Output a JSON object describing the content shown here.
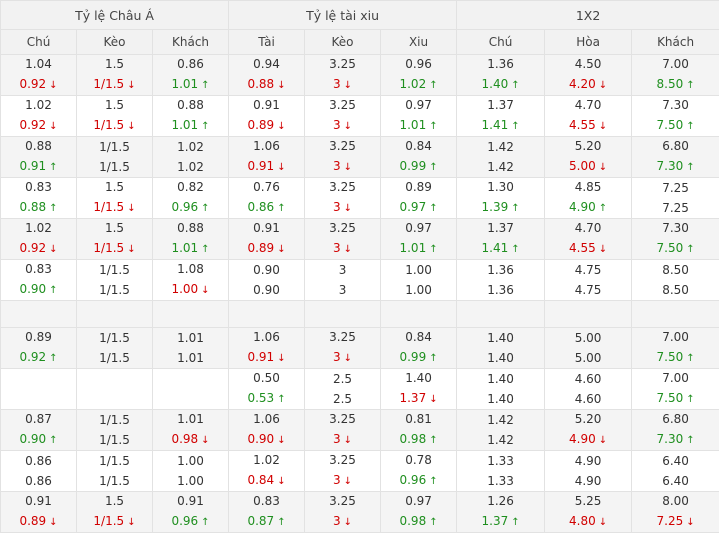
{
  "groups": [
    "Tỷ lệ Châu Á",
    "Tỷ lệ tài xiu",
    "1X2"
  ],
  "columns": [
    "Chú",
    "Kèo",
    "Khách",
    "Tài",
    "Kèo",
    "Xiu",
    "Chú",
    "Hòa",
    "Khách"
  ],
  "rows": [
    {
      "cells": [
        [
          "1.04",
          "0.92",
          "down"
        ],
        [
          "1.5",
          "1/1.5",
          "down"
        ],
        [
          "0.86",
          "1.01",
          "up"
        ],
        [
          "0.94",
          "0.88",
          "down"
        ],
        [
          "3.25",
          "3",
          "down"
        ],
        [
          "0.96",
          "1.02",
          "up"
        ],
        [
          "1.36",
          "1.40",
          "up"
        ],
        [
          "4.50",
          "4.20",
          "down"
        ],
        [
          "7.00",
          "8.50",
          "up"
        ]
      ]
    },
    {
      "cells": [
        [
          "1.02",
          "0.92",
          "down"
        ],
        [
          "1.5",
          "1/1.5",
          "down"
        ],
        [
          "0.88",
          "1.01",
          "up"
        ],
        [
          "0.91",
          "0.89",
          "down"
        ],
        [
          "3.25",
          "3",
          "down"
        ],
        [
          "0.97",
          "1.01",
          "up"
        ],
        [
          "1.37",
          "1.41",
          "up"
        ],
        [
          "4.70",
          "4.55",
          "down"
        ],
        [
          "7.30",
          "7.50",
          "up"
        ]
      ]
    },
    {
      "cells": [
        [
          "0.88",
          "0.91",
          "up"
        ],
        [
          "1/1.5",
          "1/1.5",
          ""
        ],
        [
          "1.02",
          "1.02",
          ""
        ],
        [
          "1.06",
          "0.91",
          "down"
        ],
        [
          "3.25",
          "3",
          "down"
        ],
        [
          "0.84",
          "0.99",
          "up"
        ],
        [
          "1.42",
          "1.42",
          ""
        ],
        [
          "5.20",
          "5.00",
          "down"
        ],
        [
          "6.80",
          "7.30",
          "up"
        ]
      ]
    },
    {
      "cells": [
        [
          "0.83",
          "0.88",
          "up"
        ],
        [
          "1.5",
          "1/1.5",
          "down"
        ],
        [
          "0.82",
          "0.96",
          "up"
        ],
        [
          "0.76",
          "0.86",
          "up"
        ],
        [
          "3.25",
          "3",
          "down"
        ],
        [
          "0.89",
          "0.97",
          "up"
        ],
        [
          "1.30",
          "1.39",
          "up"
        ],
        [
          "4.85",
          "4.90",
          "up"
        ],
        [
          "7.25",
          "7.25",
          ""
        ]
      ]
    },
    {
      "cells": [
        [
          "1.02",
          "0.92",
          "down"
        ],
        [
          "1.5",
          "1/1.5",
          "down"
        ],
        [
          "0.88",
          "1.01",
          "up"
        ],
        [
          "0.91",
          "0.89",
          "down"
        ],
        [
          "3.25",
          "3",
          "down"
        ],
        [
          "0.97",
          "1.01",
          "up"
        ],
        [
          "1.37",
          "1.41",
          "up"
        ],
        [
          "4.70",
          "4.55",
          "down"
        ],
        [
          "7.30",
          "7.50",
          "up"
        ]
      ]
    },
    {
      "cells": [
        [
          "0.83",
          "0.90",
          "up"
        ],
        [
          "1/1.5",
          "1/1.5",
          ""
        ],
        [
          "1.08",
          "1.00",
          "down"
        ],
        [
          "0.90",
          "0.90",
          ""
        ],
        [
          "3",
          "3",
          ""
        ],
        [
          "1.00",
          "1.00",
          ""
        ],
        [
          "1.36",
          "1.36",
          ""
        ],
        [
          "4.75",
          "4.75",
          ""
        ],
        [
          "8.50",
          "8.50",
          ""
        ]
      ]
    },
    {
      "blank": true
    },
    {
      "cells": [
        [
          "0.89",
          "0.92",
          "up"
        ],
        [
          "1/1.5",
          "1/1.5",
          ""
        ],
        [
          "1.01",
          "1.01",
          ""
        ],
        [
          "1.06",
          "0.91",
          "down"
        ],
        [
          "3.25",
          "3",
          "down"
        ],
        [
          "0.84",
          "0.99",
          "up"
        ],
        [
          "1.40",
          "1.40",
          ""
        ],
        [
          "5.00",
          "5.00",
          ""
        ],
        [
          "7.00",
          "7.50",
          "up"
        ]
      ]
    },
    {
      "cells": [
        [
          "",
          "",
          ""
        ],
        [
          "",
          "",
          ""
        ],
        [
          "",
          "",
          ""
        ],
        [
          "0.50",
          "0.53",
          "up"
        ],
        [
          "2.5",
          "2.5",
          ""
        ],
        [
          "1.40",
          "1.37",
          "down"
        ],
        [
          "1.40",
          "1.40",
          ""
        ],
        [
          "4.60",
          "4.60",
          ""
        ],
        [
          "7.00",
          "7.50",
          "up"
        ]
      ]
    },
    {
      "cells": [
        [
          "0.87",
          "0.90",
          "up"
        ],
        [
          "1/1.5",
          "1/1.5",
          ""
        ],
        [
          "1.01",
          "0.98",
          "down"
        ],
        [
          "1.06",
          "0.90",
          "down"
        ],
        [
          "3.25",
          "3",
          "down"
        ],
        [
          "0.81",
          "0.98",
          "up"
        ],
        [
          "1.42",
          "1.42",
          ""
        ],
        [
          "5.20",
          "4.90",
          "down"
        ],
        [
          "6.80",
          "7.30",
          "up"
        ]
      ]
    },
    {
      "cells": [
        [
          "0.86",
          "0.86",
          ""
        ],
        [
          "1/1.5",
          "1/1.5",
          ""
        ],
        [
          "1.00",
          "1.00",
          ""
        ],
        [
          "1.02",
          "0.84",
          "down"
        ],
        [
          "3.25",
          "3",
          "down"
        ],
        [
          "0.78",
          "0.96",
          "up"
        ],
        [
          "1.33",
          "1.33",
          ""
        ],
        [
          "4.90",
          "4.90",
          ""
        ],
        [
          "6.40",
          "6.40",
          ""
        ]
      ]
    },
    {
      "cells": [
        [
          "0.91",
          "0.89",
          "down"
        ],
        [
          "1.5",
          "1/1.5",
          "down"
        ],
        [
          "0.91",
          "0.96",
          "up"
        ],
        [
          "0.83",
          "0.87",
          "up"
        ],
        [
          "3.25",
          "3",
          "down"
        ],
        [
          "0.97",
          "0.98",
          "up"
        ],
        [
          "1.26",
          "1.37",
          "up"
        ],
        [
          "5.25",
          "4.80",
          "down"
        ],
        [
          "8.00",
          "7.25",
          "down"
        ]
      ]
    }
  ],
  "colors": {
    "up": "#1f8f1f",
    "down": "#d10000",
    "header_bg": "#f2f2f2",
    "alt_row_bg": "#f4f4f4",
    "border": "#e2e2e2"
  },
  "icons": {
    "up": "arrow-up-icon",
    "down": "arrow-down-icon"
  }
}
